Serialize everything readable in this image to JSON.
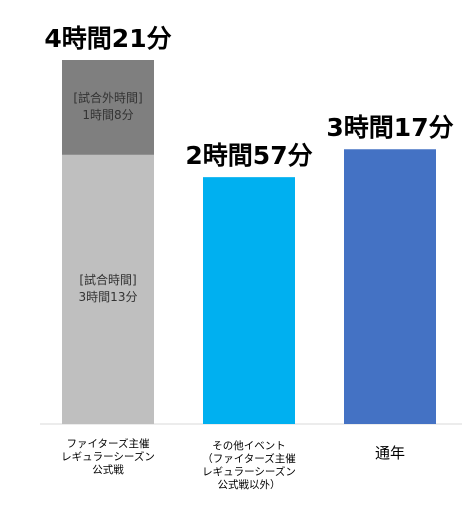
{
  "chart_data": {
    "type": "bar",
    "stacked": true,
    "unit": "minutes",
    "categories": [
      [
        "ファイターズ主催",
        "レギュラーシーズン",
        "公式戦"
      ],
      [
        "その他イベント",
        "（ファイターズ主催",
        "レギュラーシーズン",
        "公式戦以外）"
      ],
      [
        "通年"
      ]
    ],
    "series": [
      {
        "name": "試合時間",
        "values": [
          193,
          177,
          197
        ],
        "colors": [
          "#bfbfbf",
          "#00b0f0",
          "#4472c4"
        ]
      },
      {
        "name": "試合外時間",
        "values": [
          68,
          0,
          0
        ],
        "colors": [
          "#7f7f7f",
          "#7f7f7f",
          "#7f7f7f"
        ]
      }
    ],
    "segment_labels": [
      [
        "[試合時間]",
        "3時間13分"
      ],
      [
        "[試合外時間]",
        "1時間8分"
      ]
    ],
    "totals": [
      "4時間21分",
      "2時間57分",
      "3時間17分"
    ],
    "ylim": [
      0,
      261
    ],
    "grid": false,
    "legend": "none"
  }
}
